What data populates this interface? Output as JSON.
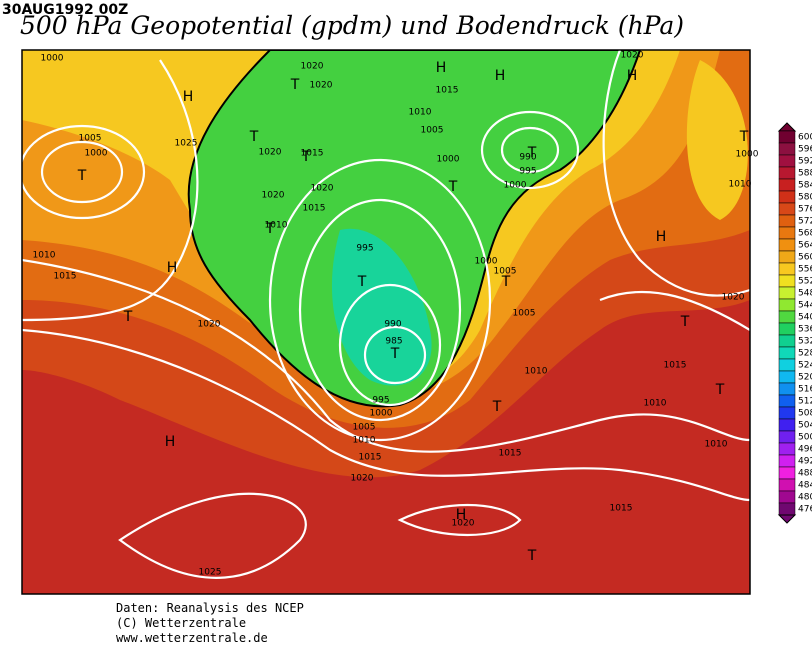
{
  "header": {
    "date": "30AUG1992 00Z",
    "title": "500 hPa Geopotential (gpdm) und Bodendruck (hPa)"
  },
  "colorbar": {
    "ticks": [
      600,
      596,
      592,
      588,
      584,
      580,
      576,
      572,
      568,
      564,
      560,
      556,
      552,
      548,
      544,
      540,
      536,
      532,
      528,
      524,
      520,
      516,
      512,
      508,
      504,
      500,
      496,
      492,
      488,
      484,
      480,
      476
    ],
    "colors": [
      "#700030",
      "#8c1040",
      "#a01040",
      "#b81830",
      "#c82020",
      "#d03018",
      "#d84818",
      "#e06010",
      "#e87810",
      "#f09010",
      "#f0a818",
      "#f8c820",
      "#f0e020",
      "#c8f030",
      "#90e830",
      "#50d840",
      "#20d060",
      "#10d090",
      "#10d8b8",
      "#10d0e0",
      "#10b8f0",
      "#1090f0",
      "#1060f0",
      "#2038f0",
      "#4020f0",
      "#7020f0",
      "#a020f0",
      "#d020f0",
      "#f020e0",
      "#d010b0",
      "#a00890",
      "#700870"
    ]
  },
  "map": {
    "centers": [
      "T",
      "H",
      "T",
      "T",
      "T",
      "T",
      "H",
      "T",
      "H",
      "H",
      "T",
      "T",
      "T",
      "T",
      "T",
      "H",
      "H",
      "T",
      "T",
      "T",
      "H",
      "H",
      "T",
      "T"
    ],
    "isobar_labels": [
      1000,
      1005,
      1000,
      1025,
      1020,
      1015,
      1020,
      1020,
      1015,
      1010,
      1020,
      1020,
      1015,
      1010,
      1005,
      1000,
      990,
      995,
      1000,
      995,
      1000,
      1005,
      1005,
      990,
      985,
      1010,
      1015,
      1020,
      1010,
      1015,
      1010,
      1010,
      995,
      1000,
      1005,
      1010,
      1015,
      1020,
      1015,
      1020,
      1015,
      1025,
      1020,
      1020,
      1010,
      1000
    ]
  },
  "footer": {
    "lines": [
      "Daten: Reanalysis des NCEP",
      "(C) Wetterzentrale",
      "www.wetterzentrale.de"
    ]
  }
}
